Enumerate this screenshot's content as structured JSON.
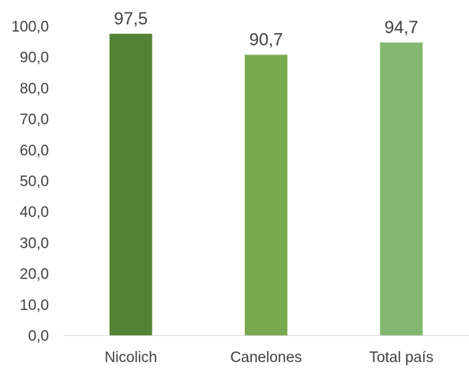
{
  "chart_data": {
    "type": "bar",
    "categories": [
      "Nicolich",
      "Canelones",
      "Total país"
    ],
    "values": [
      97.5,
      90.7,
      94.7
    ],
    "value_labels": [
      "97,5",
      "90,7",
      "94,7"
    ],
    "title": "",
    "xlabel": "",
    "ylabel": "",
    "ylim": [
      0,
      100
    ],
    "y_ticks": [
      0,
      10,
      20,
      30,
      40,
      50,
      60,
      70,
      80,
      90,
      100
    ],
    "y_tick_labels": [
      "0,0",
      "10,0",
      "20,0",
      "30,0",
      "40,0",
      "50,0",
      "60,0",
      "70,0",
      "80,0",
      "90,0",
      "100,0"
    ],
    "grid": false,
    "legend": "none",
    "colors": [
      "#548235",
      "#7aa84f",
      "#83b76f"
    ],
    "axis_color": "#d9d9d9"
  }
}
